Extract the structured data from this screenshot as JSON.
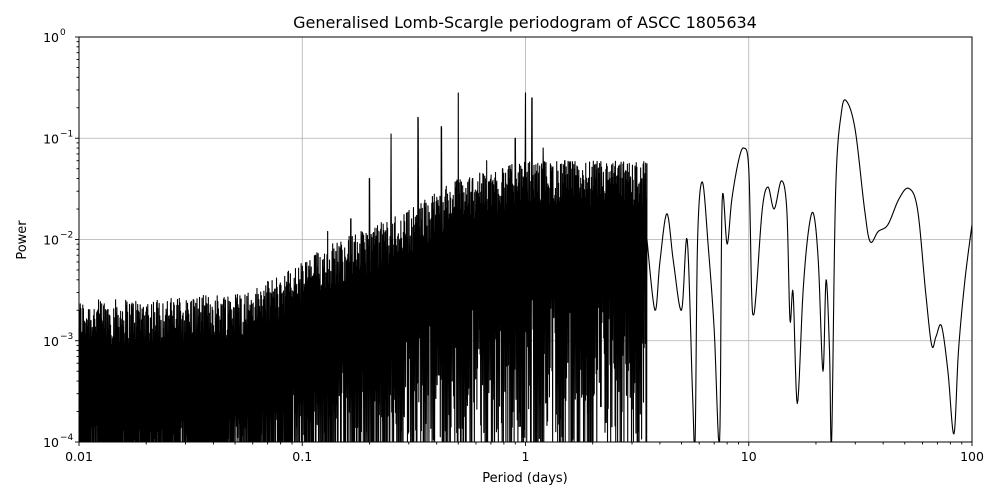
{
  "chart_data": {
    "type": "line",
    "title": "Generalised Lomb-Scargle periodogram of ASCC 1805634",
    "xlabel": "Period (days)",
    "ylabel": "Power",
    "xscale": "log",
    "yscale": "log",
    "xlim": [
      0.01,
      100
    ],
    "ylim": [
      0.0001,
      1
    ],
    "grid": true,
    "x_ticks": [
      {
        "value": 0.01,
        "label": "0.01"
      },
      {
        "value": 0.1,
        "label": "0.1"
      },
      {
        "value": 1,
        "label": "1"
      },
      {
        "value": 10,
        "label": "10"
      },
      {
        "value": 100,
        "label": "100"
      }
    ],
    "y_ticks": [
      {
        "value": 0.0001,
        "base": "10",
        "exp": "−4"
      },
      {
        "value": 0.001,
        "base": "10",
        "exp": "−3"
      },
      {
        "value": 0.01,
        "base": "10",
        "exp": "−2"
      },
      {
        "value": 0.1,
        "base": "10",
        "exp": "−1"
      },
      {
        "value": 1,
        "base": "10",
        "exp": "0"
      }
    ],
    "series": [
      {
        "color": "#000000",
        "envelope_points": [
          [
            0.01,
            0.0025
          ],
          [
            0.03,
            0.0027
          ],
          [
            0.06,
            0.0032
          ],
          [
            0.1,
            0.006
          ],
          [
            0.13,
            0.009
          ],
          [
            0.2,
            0.013
          ],
          [
            0.3,
            0.02
          ],
          [
            0.5,
            0.04
          ],
          [
            1,
            0.06
          ]
        ],
        "peaks": [
          [
            0.13,
            0.012
          ],
          [
            0.165,
            0.016
          ],
          [
            0.2,
            0.04
          ],
          [
            0.25,
            0.11
          ],
          [
            0.33,
            0.16
          ],
          [
            0.42,
            0.13
          ],
          [
            0.5,
            0.28
          ],
          [
            0.58,
            0.04
          ],
          [
            0.67,
            0.06
          ],
          [
            0.79,
            0.05
          ],
          [
            0.9,
            0.1
          ],
          [
            1.0,
            0.28
          ],
          [
            1.07,
            0.25
          ],
          [
            1.2,
            0.08
          ],
          [
            1.5,
            0.06
          ],
          [
            2.0,
            0.03
          ],
          [
            2.2,
            0.03
          ],
          [
            3.0,
            0.02
          ],
          [
            3.4,
            0.017
          ]
        ],
        "smooth_points": [
          [
            3.5,
            0.01
          ],
          [
            3.8,
            0.002
          ],
          [
            4.0,
            0.006
          ],
          [
            4.3,
            0.018
          ],
          [
            4.6,
            0.006
          ],
          [
            5.0,
            0.002
          ],
          [
            5.3,
            0.01
          ],
          [
            5.6,
            0.0003
          ],
          [
            5.75,
            0.0001
          ],
          [
            5.9,
            0.01
          ],
          [
            6.2,
            0.037
          ],
          [
            6.6,
            0.008
          ],
          [
            7.0,
            0.0013
          ],
          [
            7.4,
            0.0001
          ],
          [
            7.6,
            0.024
          ],
          [
            8.0,
            0.009
          ],
          [
            8.4,
            0.025
          ],
          [
            9.0,
            0.06
          ],
          [
            9.5,
            0.08
          ],
          [
            10.0,
            0.05
          ],
          [
            10.3,
            0.003
          ],
          [
            10.5,
            0.0018
          ],
          [
            10.8,
            0.003
          ],
          [
            11.5,
            0.02
          ],
          [
            12.2,
            0.033
          ],
          [
            13.0,
            0.02
          ],
          [
            14.0,
            0.038
          ],
          [
            14.8,
            0.02
          ],
          [
            15.3,
            0.0016
          ],
          [
            15.8,
            0.003
          ],
          [
            16.5,
            0.00024
          ],
          [
            17.5,
            0.003
          ],
          [
            18.5,
            0.012
          ],
          [
            19.5,
            0.018
          ],
          [
            20.5,
            0.006
          ],
          [
            21.5,
            0.0005
          ],
          [
            22.2,
            0.004
          ],
          [
            23.0,
            0.0008
          ],
          [
            23.5,
            0.0001
          ],
          [
            24.5,
            0.03
          ],
          [
            26.0,
            0.18
          ],
          [
            27.5,
            0.23
          ],
          [
            30.0,
            0.12
          ],
          [
            33.0,
            0.02
          ],
          [
            35.0,
            0.0095
          ],
          [
            38.0,
            0.012
          ],
          [
            42.0,
            0.014
          ],
          [
            47.0,
            0.025
          ],
          [
            52.0,
            0.032
          ],
          [
            57.0,
            0.02
          ],
          [
            62.0,
            0.003
          ],
          [
            66.0,
            0.0009
          ],
          [
            69.0,
            0.0011
          ],
          [
            73.0,
            0.0014
          ],
          [
            78.0,
            0.0005
          ],
          [
            83.0,
            0.00012
          ],
          [
            87.0,
            0.0008
          ],
          [
            93.0,
            0.004
          ],
          [
            100.0,
            0.014
          ]
        ]
      }
    ]
  }
}
